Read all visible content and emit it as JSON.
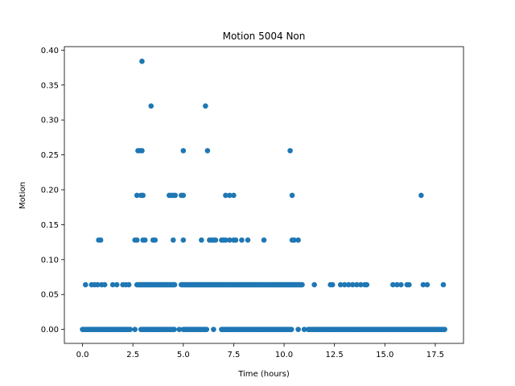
{
  "chart_data": {
    "type": "scatter",
    "title": "Motion 5004 Non",
    "xlabel": "Time (hours)",
    "ylabel": "Motion",
    "xlim": [
      -0.9,
      18.9
    ],
    "ylim": [
      -0.02,
      0.405
    ],
    "xticks": [
      0.0,
      2.5,
      5.0,
      7.5,
      10.0,
      12.5,
      15.0,
      17.5
    ],
    "xtick_labels": [
      "0.0",
      "2.5",
      "5.0",
      "7.5",
      "10.0",
      "12.5",
      "15.0",
      "17.5"
    ],
    "yticks": [
      0.0,
      0.05,
      0.1,
      0.15,
      0.2,
      0.25,
      0.3,
      0.35,
      0.4
    ],
    "ytick_labels": [
      "0.00",
      "0.05",
      "0.10",
      "0.15",
      "0.20",
      "0.25",
      "0.30",
      "0.35",
      "0.40"
    ],
    "grid": false,
    "marker_color": "#1f77b4",
    "series": [
      {
        "levels": [
          {
            "y": 0.0,
            "x_ranges": [
              [
                0.0,
                2.4
              ],
              [
                2.9,
                4.6
              ],
              [
                5.0,
                6.2
              ],
              [
                6.9,
                10.4
              ],
              [
                11.2,
                18.0
              ]
            ],
            "x": [
              2.6,
              4.8,
              6.5,
              10.7,
              11.0
            ]
          },
          {
            "y": 0.064,
            "x_ranges": [
              [
                2.7,
                4.6
              ],
              [
                4.9,
                10.9
              ]
            ],
            "x": [
              0.15,
              0.45,
              0.6,
              0.75,
              0.95,
              1.1,
              1.5,
              1.7,
              2.0,
              2.15,
              2.3,
              11.5,
              12.3,
              12.4,
              12.8,
              13.0,
              13.2,
              13.4,
              13.6,
              13.8,
              14.0,
              14.1,
              15.4,
              15.6,
              15.8,
              16.1,
              16.2,
              16.9,
              17.1,
              17.9
            ]
          },
          {
            "y": 0.128,
            "x": [
              0.8,
              0.9,
              2.6,
              2.7,
              3.0,
              3.1,
              3.5,
              3.6,
              4.5,
              5.0,
              5.9,
              6.3,
              6.4,
              6.5,
              6.6,
              6.9,
              7.0,
              7.1,
              7.3,
              7.5,
              7.6,
              7.9,
              8.2,
              9.0,
              10.4,
              10.5,
              10.7
            ]
          },
          {
            "y": 0.192,
            "x": [
              2.7,
              2.9,
              3.0,
              4.3,
              4.4,
              4.5,
              4.6,
              4.9,
              5.0,
              7.1,
              7.3,
              7.5,
              10.4,
              16.8
            ]
          },
          {
            "y": 0.256,
            "x": [
              2.75,
              2.85,
              2.95,
              5.0,
              6.2,
              10.3
            ]
          },
          {
            "y": 0.32,
            "x": [
              3.4,
              6.1
            ]
          },
          {
            "y": 0.384,
            "x": [
              2.95
            ]
          }
        ]
      }
    ]
  }
}
